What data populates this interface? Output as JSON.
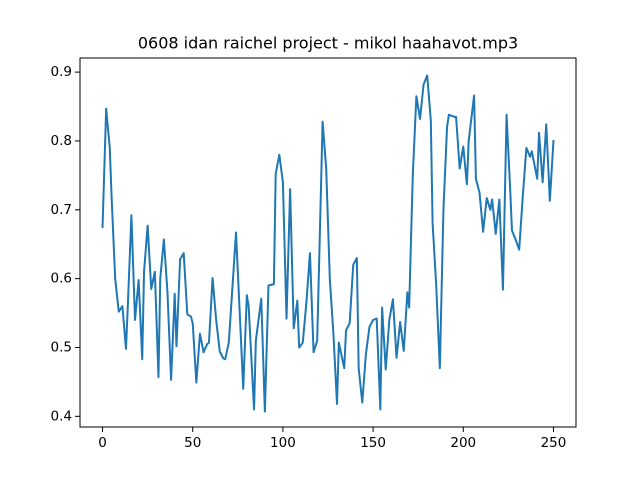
{
  "chart_data": {
    "type": "line",
    "title": "0608 idan raichel project - mikol haahavot.mp3",
    "x": [
      0,
      2,
      4,
      5,
      7,
      9,
      11,
      13,
      14,
      16,
      18,
      20,
      22,
      23,
      25,
      27,
      29,
      31,
      32,
      34,
      36,
      38,
      40,
      41,
      43,
      45,
      47,
      49,
      50,
      52,
      54,
      56,
      58,
      59,
      61,
      63,
      65,
      67,
      68,
      70,
      74,
      78,
      80,
      81,
      84,
      85,
      88,
      90,
      92,
      95,
      96,
      98,
      100,
      102,
      104,
      106,
      108,
      109,
      111,
      113,
      115,
      117,
      119,
      121,
      122,
      124,
      126,
      128,
      130,
      131,
      134,
      135,
      137,
      139,
      141,
      142,
      144,
      146,
      148,
      150,
      152,
      154,
      155,
      157,
      159,
      161,
      163,
      165,
      167,
      169,
      170,
      172,
      174,
      176,
      178,
      180,
      182,
      183,
      185,
      187,
      189,
      191,
      192,
      195,
      196,
      198,
      200,
      202,
      203,
      206,
      207,
      209,
      211,
      213,
      215,
      216,
      218,
      220,
      222,
      224,
      226,
      227,
      229,
      231,
      233,
      235,
      237,
      238,
      241,
      242,
      244,
      246,
      248,
      250
    ],
    "series": [
      {
        "color": "#1f77b4",
        "values": [
          0.675,
          0.847,
          0.79,
          0.72,
          0.6,
          0.552,
          0.56,
          0.498,
          0.56,
          0.692,
          0.54,
          0.598,
          0.483,
          0.61,
          0.677,
          0.585,
          0.61,
          0.457,
          0.6,
          0.657,
          0.58,
          0.453,
          0.578,
          0.502,
          0.628,
          0.637,
          0.548,
          0.545,
          0.535,
          0.449,
          0.52,
          0.493,
          0.505,
          0.507,
          0.601,
          0.54,
          0.494,
          0.484,
          0.483,
          0.507,
          0.667,
          0.44,
          0.576,
          0.56,
          0.41,
          0.51,
          0.571,
          0.407,
          0.59,
          0.592,
          0.752,
          0.78,
          0.74,
          0.542,
          0.73,
          0.528,
          0.568,
          0.5,
          0.507,
          0.565,
          0.637,
          0.493,
          0.51,
          0.72,
          0.828,
          0.76,
          0.6,
          0.52,
          0.418,
          0.507,
          0.47,
          0.525,
          0.535,
          0.62,
          0.63,
          0.47,
          0.42,
          0.49,
          0.53,
          0.54,
          0.542,
          0.41,
          0.558,
          0.468,
          0.54,
          0.57,
          0.485,
          0.537,
          0.495,
          0.58,
          0.558,
          0.75,
          0.865,
          0.832,
          0.882,
          0.895,
          0.83,
          0.68,
          0.59,
          0.47,
          0.7,
          0.82,
          0.838,
          0.835,
          0.835,
          0.76,
          0.792,
          0.737,
          0.8,
          0.866,
          0.745,
          0.725,
          0.668,
          0.717,
          0.7,
          0.715,
          0.665,
          0.715,
          0.584,
          0.838,
          0.73,
          0.67,
          0.657,
          0.642,
          0.72,
          0.79,
          0.777,
          0.785,
          0.745,
          0.812,
          0.74,
          0.824,
          0.713,
          0.8
        ]
      }
    ],
    "xlim": [
      -12.5,
      262.5
    ],
    "xticks": [
      0,
      50,
      100,
      150,
      200,
      250
    ],
    "ylim": [
      0.3845,
      0.9205
    ],
    "yticks": [
      0.4,
      0.5,
      0.6,
      0.7,
      0.8,
      0.9
    ]
  }
}
